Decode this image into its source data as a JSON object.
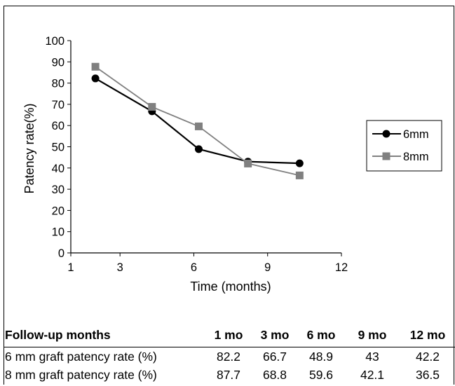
{
  "chart_data": {
    "type": "line",
    "xlabel": "Time (months)",
    "ylabel": "Patency rate(%)",
    "x_ticks": [
      "1",
      "3",
      "6",
      "9",
      "12"
    ],
    "x_tick_positions": [
      1,
      3,
      6,
      9,
      12
    ],
    "y_ticks": [
      "0",
      "10",
      "20",
      "30",
      "40",
      "50",
      "60",
      "70",
      "80",
      "90",
      "100"
    ],
    "ylim": [
      0,
      100
    ],
    "xlim": [
      1,
      12
    ],
    "x": [
      2,
      4.3,
      6.2,
      8.2,
      10.3
    ],
    "series": [
      {
        "name": "6mm",
        "values": [
          82.2,
          66.7,
          48.9,
          43,
          42.2
        ],
        "color": "#000000",
        "marker": "circle"
      },
      {
        "name": "8mm",
        "values": [
          87.7,
          68.8,
          59.6,
          42.1,
          36.5
        ],
        "color": "#808080",
        "marker": "square"
      }
    ],
    "legend_placement": "right",
    "grid": false
  },
  "table": {
    "header": [
      "Follow-up months",
      "1 mo",
      "3 mo",
      "6 mo",
      "9 mo",
      "12 mo"
    ],
    "rows": [
      {
        "label": "6 mm graft patency rate (%)",
        "values": [
          "82.2",
          "66.7",
          "48.9",
          "43",
          "42.2"
        ]
      },
      {
        "label": "8 mm graft patency rate (%)",
        "values": [
          "87.7",
          "68.8",
          "59.6",
          "42.1",
          "36.5"
        ]
      }
    ]
  }
}
